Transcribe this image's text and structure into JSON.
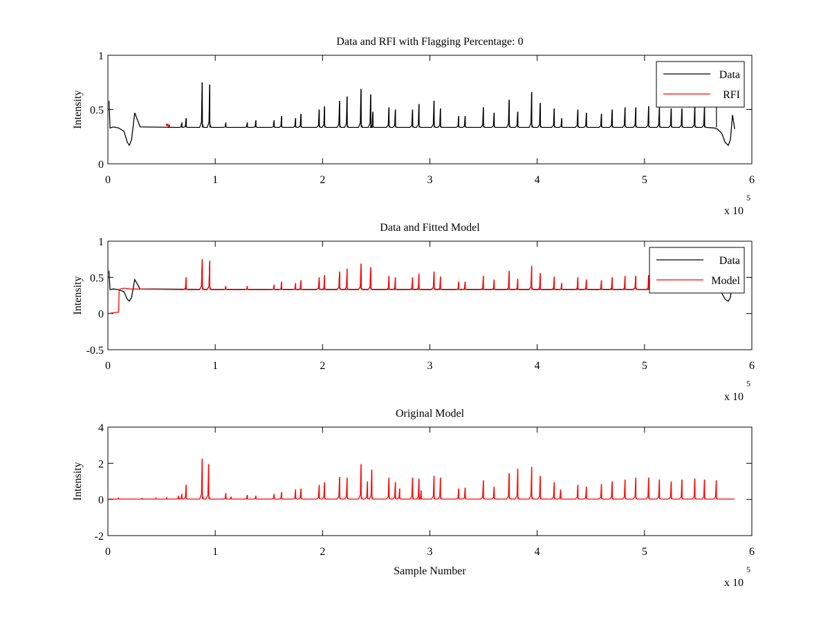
{
  "figure": {
    "background": "#ffffff",
    "axis_color": "#000000",
    "colors": {
      "data": "#000000",
      "rfi": "#ff0000",
      "model": "#ff0000"
    }
  },
  "chart_data": [
    {
      "type": "line",
      "title": "Data and RFI with Flagging Percentage: 0",
      "xlabel": "",
      "ylabel": "Intensity",
      "xlim": [
        0,
        6
      ],
      "ylim": [
        0,
        1
      ],
      "xticks": [
        0,
        1,
        2,
        3,
        4,
        5,
        6
      ],
      "yticks": [
        0,
        0.5,
        1
      ],
      "xtick_labels": [
        "0",
        "1",
        "2",
        "3",
        "4",
        "5",
        "6"
      ],
      "ytick_labels": [
        "0",
        "0.5",
        "1"
      ],
      "x_multiplier": {
        "base": "x 10",
        "exponent": "5"
      },
      "legend": {
        "position": "top-right",
        "entries": [
          {
            "label": "Data",
            "color": "#000000"
          },
          {
            "label": "RFI",
            "color": "#ff0000"
          }
        ]
      },
      "series": [
        {
          "name": "Data",
          "color": "#000000",
          "baseline": 0.335,
          "x": [
            0,
            0.01,
            0.02,
            0.05,
            0.1,
            0.15,
            0.18,
            0.2,
            0.22,
            0.25,
            0.3,
            5.65,
            5.68,
            5.72,
            5.75,
            5.78,
            5.8,
            5.82,
            5.84
          ],
          "y": [
            0.55,
            0.58,
            0.33,
            0.34,
            0.33,
            0.3,
            0.2,
            0.17,
            0.22,
            0.47,
            0.34,
            0.33,
            0.32,
            0.28,
            0.2,
            0.17,
            0.22,
            0.45,
            0.32
          ],
          "peaks": [
            [
              0.69,
              0.38
            ],
            [
              0.73,
              0.42
            ],
            [
              0.88,
              0.75
            ],
            [
              0.95,
              0.73
            ],
            [
              1.1,
              0.38
            ],
            [
              1.3,
              0.38
            ],
            [
              1.38,
              0.4
            ],
            [
              1.55,
              0.4
            ],
            [
              1.62,
              0.44
            ],
            [
              1.75,
              0.42
            ],
            [
              1.8,
              0.46
            ],
            [
              1.97,
              0.5
            ],
            [
              2.02,
              0.53
            ],
            [
              2.16,
              0.58
            ],
            [
              2.23,
              0.62
            ],
            [
              2.36,
              0.69
            ],
            [
              2.45,
              0.64
            ],
            [
              2.47,
              0.48
            ],
            [
              2.62,
              0.52
            ],
            [
              2.68,
              0.5
            ],
            [
              2.84,
              0.5
            ],
            [
              2.9,
              0.55
            ],
            [
              3.04,
              0.58
            ],
            [
              3.1,
              0.51
            ],
            [
              3.27,
              0.44
            ],
            [
              3.33,
              0.44
            ],
            [
              3.5,
              0.52
            ],
            [
              3.6,
              0.47
            ],
            [
              3.74,
              0.59
            ],
            [
              3.82,
              0.48
            ],
            [
              3.95,
              0.66
            ],
            [
              4.03,
              0.56
            ],
            [
              4.16,
              0.51
            ],
            [
              4.23,
              0.42
            ],
            [
              4.38,
              0.5
            ],
            [
              4.46,
              0.47
            ],
            [
              4.6,
              0.46
            ],
            [
              4.7,
              0.5
            ],
            [
              4.82,
              0.52
            ],
            [
              4.92,
              0.52
            ],
            [
              5.04,
              0.53
            ],
            [
              5.14,
              0.52
            ],
            [
              5.25,
              0.51
            ],
            [
              5.35,
              0.51
            ],
            [
              5.47,
              0.52
            ],
            [
              5.56,
              0.52
            ],
            [
              5.67,
              0.52
            ]
          ]
        },
        {
          "name": "RFI",
          "color": "#ff0000",
          "x": [
            0.55,
            0.57
          ],
          "y": [
            0.36,
            0.35
          ]
        }
      ]
    },
    {
      "type": "line",
      "title": "Data and Fitted Model",
      "xlabel": "",
      "ylabel": "Intensity",
      "xlim": [
        0,
        6
      ],
      "ylim": [
        -0.5,
        1
      ],
      "xticks": [
        0,
        1,
        2,
        3,
        4,
        5,
        6
      ],
      "yticks": [
        -0.5,
        0,
        0.5,
        1
      ],
      "xtick_labels": [
        "0",
        "1",
        "2",
        "3",
        "4",
        "5",
        "6"
      ],
      "ytick_labels": [
        "-0.5",
        "0",
        "0.5",
        "1"
      ],
      "x_multiplier": {
        "base": "x 10",
        "exponent": "5"
      },
      "legend": {
        "position": "top-right",
        "entries": [
          {
            "label": "Data",
            "color": "#000000"
          },
          {
            "label": "Model",
            "color": "#ff0000"
          }
        ]
      },
      "series": [
        {
          "name": "Data",
          "color": "#000000",
          "baseline": 0.335,
          "x": [
            0,
            0.01,
            0.02,
            0.05,
            0.1,
            0.15,
            0.18,
            0.2,
            0.22,
            0.25,
            0.3,
            5.65,
            5.68,
            5.72,
            5.75,
            5.78,
            5.8,
            5.82,
            5.84
          ],
          "y": [
            0.55,
            0.58,
            0.33,
            0.34,
            0.33,
            0.3,
            0.2,
            0.17,
            0.22,
            0.47,
            0.34,
            0.33,
            0.32,
            0.28,
            0.2,
            0.17,
            0.22,
            0.45,
            0.32
          ],
          "peaks": [
            [
              0.88,
              0.7
            ],
            [
              0.95,
              0.68
            ],
            [
              1.97,
              0.45
            ],
            [
              2.16,
              0.55
            ],
            [
              2.36,
              0.6
            ],
            [
              2.45,
              0.55
            ],
            [
              3.04,
              0.52
            ],
            [
              3.95,
              0.6
            ],
            [
              4.92,
              0.52
            ]
          ]
        },
        {
          "name": "Model",
          "color": "#ff0000",
          "baseline": 0.33,
          "x": [
            0,
            0.05,
            0.1,
            0.105,
            0.12,
            0.15,
            0.2
          ],
          "y": [
            0.0,
            0.01,
            0.02,
            0.33,
            0.34,
            0.35,
            0.34
          ],
          "peaks": [
            [
              0.73,
              0.5
            ],
            [
              0.88,
              0.75
            ],
            [
              0.95,
              0.73
            ],
            [
              1.1,
              0.38
            ],
            [
              1.3,
              0.38
            ],
            [
              1.55,
              0.4
            ],
            [
              1.62,
              0.44
            ],
            [
              1.75,
              0.42
            ],
            [
              1.8,
              0.46
            ],
            [
              1.97,
              0.5
            ],
            [
              2.02,
              0.53
            ],
            [
              2.16,
              0.58
            ],
            [
              2.23,
              0.62
            ],
            [
              2.36,
              0.69
            ],
            [
              2.45,
              0.64
            ],
            [
              2.62,
              0.52
            ],
            [
              2.68,
              0.5
            ],
            [
              2.84,
              0.5
            ],
            [
              2.9,
              0.55
            ],
            [
              3.04,
              0.58
            ],
            [
              3.1,
              0.51
            ],
            [
              3.27,
              0.44
            ],
            [
              3.33,
              0.44
            ],
            [
              3.5,
              0.52
            ],
            [
              3.6,
              0.47
            ],
            [
              3.74,
              0.59
            ],
            [
              3.82,
              0.48
            ],
            [
              3.95,
              0.66
            ],
            [
              4.03,
              0.56
            ],
            [
              4.16,
              0.51
            ],
            [
              4.23,
              0.42
            ],
            [
              4.38,
              0.5
            ],
            [
              4.46,
              0.47
            ],
            [
              4.6,
              0.46
            ],
            [
              4.7,
              0.5
            ],
            [
              4.82,
              0.52
            ],
            [
              4.92,
              0.52
            ],
            [
              5.04,
              0.53
            ]
          ]
        }
      ]
    },
    {
      "type": "line",
      "title": "Original Model",
      "xlabel": "Sample Number",
      "ylabel": "Intensity",
      "xlim": [
        0,
        6
      ],
      "ylim": [
        -2,
        4
      ],
      "xticks": [
        0,
        1,
        2,
        3,
        4,
        5,
        6
      ],
      "yticks": [
        -2,
        0,
        2,
        4
      ],
      "xtick_labels": [
        "0",
        "1",
        "2",
        "3",
        "4",
        "5",
        "6"
      ],
      "ytick_labels": [
        "-2",
        "0",
        "2",
        "4"
      ],
      "x_multiplier": {
        "base": "x 10",
        "exponent": "5"
      },
      "series": [
        {
          "name": "Model",
          "color": "#ff0000",
          "baseline": 0.02,
          "x": [
            0,
            5.84
          ],
          "y": [
            0.02,
            0.02
          ],
          "peaks": [
            [
              0.1,
              0.08
            ],
            [
              0.32,
              0.06
            ],
            [
              0.45,
              0.08
            ],
            [
              0.55,
              0.1
            ],
            [
              0.66,
              0.2
            ],
            [
              0.69,
              0.3
            ],
            [
              0.73,
              0.8
            ],
            [
              0.88,
              2.25
            ],
            [
              0.94,
              1.95
            ],
            [
              1.1,
              0.35
            ],
            [
              1.15,
              0.15
            ],
            [
              1.3,
              0.25
            ],
            [
              1.38,
              0.2
            ],
            [
              1.55,
              0.3
            ],
            [
              1.62,
              0.4
            ],
            [
              1.75,
              0.55
            ],
            [
              1.8,
              0.6
            ],
            [
              1.97,
              0.8
            ],
            [
              2.02,
              0.95
            ],
            [
              2.16,
              1.25
            ],
            [
              2.23,
              1.2
            ],
            [
              2.36,
              1.95
            ],
            [
              2.42,
              1.0
            ],
            [
              2.46,
              1.65
            ],
            [
              2.62,
              1.2
            ],
            [
              2.68,
              0.95
            ],
            [
              2.72,
              0.6
            ],
            [
              2.84,
              1.2
            ],
            [
              2.9,
              1.15
            ],
            [
              2.92,
              0.5
            ],
            [
              3.04,
              1.3
            ],
            [
              3.1,
              1.2
            ],
            [
              3.27,
              0.6
            ],
            [
              3.33,
              0.65
            ],
            [
              3.5,
              1.05
            ],
            [
              3.6,
              0.7
            ],
            [
              3.74,
              1.45
            ],
            [
              3.82,
              1.7
            ],
            [
              3.95,
              1.8
            ],
            [
              4.03,
              1.3
            ],
            [
              4.16,
              0.95
            ],
            [
              4.22,
              0.55
            ],
            [
              4.38,
              0.8
            ],
            [
              4.46,
              0.7
            ],
            [
              4.6,
              0.85
            ],
            [
              4.7,
              1.0
            ],
            [
              4.82,
              1.1
            ],
            [
              4.92,
              1.2
            ],
            [
              5.04,
              1.2
            ],
            [
              5.14,
              1.1
            ],
            [
              5.25,
              1.0
            ],
            [
              5.35,
              1.1
            ],
            [
              5.47,
              1.15
            ],
            [
              5.56,
              1.1
            ],
            [
              5.67,
              1.05
            ]
          ]
        }
      ]
    }
  ]
}
